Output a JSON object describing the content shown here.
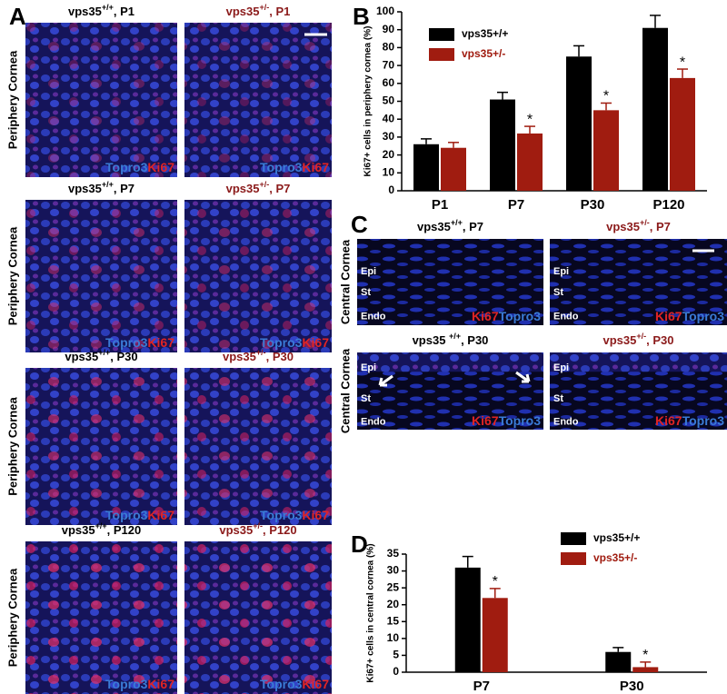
{
  "figure": {
    "panel_letters": {
      "a": "A",
      "b": "B",
      "c": "C",
      "d": "D"
    },
    "periphery_label": "Periphery Cornea",
    "central_label": "Central Cornea",
    "stain_colors": {
      "Topro3": "#3a7bd5",
      "Ki67": "#e02424"
    },
    "panel_a_images": [
      {
        "gene": "vps35",
        "genotype": "+/+",
        "age": ", P1",
        "color": "#000000",
        "stains": [
          "Topro3",
          "Ki67"
        ]
      },
      {
        "gene": "vps35",
        "genotype": "+/-",
        "age": ", P1",
        "color": "#8b1a1a",
        "stains": [
          "Topro3",
          "Ki67"
        ]
      },
      {
        "gene": "vps35",
        "genotype": "+/+",
        "age": ", P7",
        "color": "#000000",
        "stains": [
          "Topro3",
          "Ki67"
        ]
      },
      {
        "gene": "vps35",
        "genotype": "+/-",
        "age": ", P7",
        "color": "#8b1a1a",
        "stains": [
          "Topro3",
          "Ki67"
        ]
      },
      {
        "gene": "vps35",
        "genotype": "+/+",
        "age": ", P30",
        "color": "#000000",
        "stains": [
          "Topro3",
          "Ki67"
        ]
      },
      {
        "gene": "vps35",
        "genotype": "+/-",
        "age": ", P30",
        "color": "#8b1a1a",
        "stains": [
          "Topro3",
          "Ki67"
        ]
      },
      {
        "gene": "vps35",
        "genotype": "+/+",
        "age": ", P120",
        "color": "#000000",
        "stains": [
          "Topro3",
          "Ki67"
        ]
      },
      {
        "gene": "vps35",
        "genotype": "+/-",
        "age": ", P120",
        "color": "#8b1a1a",
        "stains": [
          "Topro3",
          "Ki67"
        ]
      }
    ],
    "panel_c_images": [
      {
        "gene": "vps35",
        "genotype": "+/+",
        "age": ", P7",
        "color": "#000000",
        "stains": [
          "Ki67",
          "Topro3"
        ],
        "layers": [
          "Epi",
          "St",
          "Endo"
        ]
      },
      {
        "gene": "vps35",
        "genotype": "+/-",
        "age": ", P7",
        "color": "#8b1a1a",
        "stains": [
          "Ki67",
          "Topro3"
        ],
        "layers": [
          "Epi",
          "St",
          "Endo"
        ]
      },
      {
        "gene": "vps35 ",
        "genotype": "+/+",
        "age": ", P30",
        "color": "#000000",
        "stains": [
          "Ki67",
          "Topro3"
        ],
        "layers": [
          "Epi",
          "St",
          "Endo"
        ]
      },
      {
        "gene": "vps35",
        "genotype": "+/-",
        "age": ", P30",
        "color": "#8b1a1a",
        "stains": [
          "Ki67",
          "Topro3"
        ],
        "layers": [
          "Epi",
          "St",
          "Endo"
        ]
      }
    ]
  },
  "chart_data": [
    {
      "type": "bar",
      "y_label": "Ki67+ cells in periphery cornea (%)",
      "categories": [
        "P1",
        "P7",
        "P30",
        "P120"
      ],
      "series": [
        {
          "name": "vps35+/+",
          "color": "#000000",
          "values": [
            26,
            51,
            75,
            91
          ],
          "errors": [
            3,
            4,
            6,
            7
          ],
          "significance": [
            null,
            null,
            null,
            null
          ]
        },
        {
          "name": "vps35+/-",
          "color": "#a01c10",
          "values": [
            24,
            32,
            45,
            63
          ],
          "errors": [
            3,
            4,
            4,
            5
          ],
          "significance": [
            null,
            "*",
            "*",
            "*"
          ]
        }
      ],
      "ylim": [
        0,
        100
      ],
      "yticks": [
        0,
        10,
        20,
        30,
        40,
        50,
        60,
        70,
        80,
        90,
        100
      ]
    },
    {
      "type": "bar",
      "y_label": "Ki67+ cells in central cornea (%)",
      "categories": [
        "P7",
        "P30"
      ],
      "series": [
        {
          "name": "vps35+/+",
          "color": "#000000",
          "values": [
            31,
            6
          ],
          "errors": [
            3.3,
            1.3
          ],
          "significance": [
            null,
            null
          ]
        },
        {
          "name": "vps35+/-",
          "color": "#a01c10",
          "values": [
            22,
            1.5
          ],
          "errors": [
            2.8,
            1.5
          ],
          "significance": [
            "*",
            "*"
          ]
        }
      ],
      "ylim": [
        0,
        35
      ],
      "yticks": [
        0,
        5,
        10,
        15,
        20,
        25,
        30,
        35
      ]
    }
  ]
}
